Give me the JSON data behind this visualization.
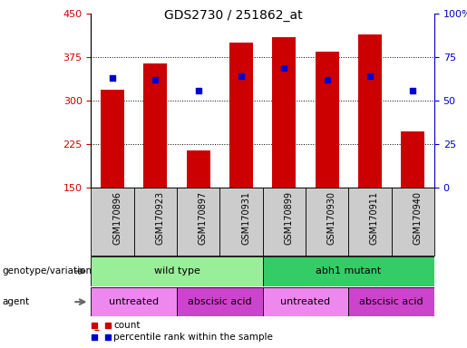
{
  "title": "GDS2730 / 251862_at",
  "samples": [
    "GSM170896",
    "GSM170923",
    "GSM170897",
    "GSM170931",
    "GSM170899",
    "GSM170930",
    "GSM170911",
    "GSM170940"
  ],
  "counts": [
    320,
    365,
    215,
    400,
    410,
    385,
    415,
    248
  ],
  "percentile_ranks": [
    63,
    62,
    56,
    64,
    69,
    62,
    64,
    56
  ],
  "ylim_left": [
    150,
    450
  ],
  "ylim_right": [
    0,
    100
  ],
  "yticks_left": [
    150,
    225,
    300,
    375,
    450
  ],
  "yticks_right": [
    0,
    25,
    50,
    75,
    100
  ],
  "bar_color": "#cc0000",
  "dot_color": "#0000cc",
  "bar_width": 0.55,
  "genotype_groups": [
    {
      "label": "wild type",
      "start": 0,
      "end": 4,
      "color": "#99ee99"
    },
    {
      "label": "abh1 mutant",
      "start": 4,
      "end": 8,
      "color": "#33cc66"
    }
  ],
  "agent_groups": [
    {
      "label": "untreated",
      "start": 0,
      "end": 2,
      "color": "#ee88ee"
    },
    {
      "label": "abscisic acid",
      "start": 2,
      "end": 4,
      "color": "#cc44cc"
    },
    {
      "label": "untreated",
      "start": 4,
      "end": 6,
      "color": "#ee88ee"
    },
    {
      "label": "abscisic acid",
      "start": 6,
      "end": 8,
      "color": "#cc44cc"
    }
  ],
  "legend_count_color": "#cc0000",
  "legend_dot_color": "#0000cc",
  "axis_color_left": "#cc0000",
  "axis_color_right": "#0000cc",
  "sample_label_bg": "#cccccc",
  "grid_yticks": [
    225,
    300,
    375
  ]
}
